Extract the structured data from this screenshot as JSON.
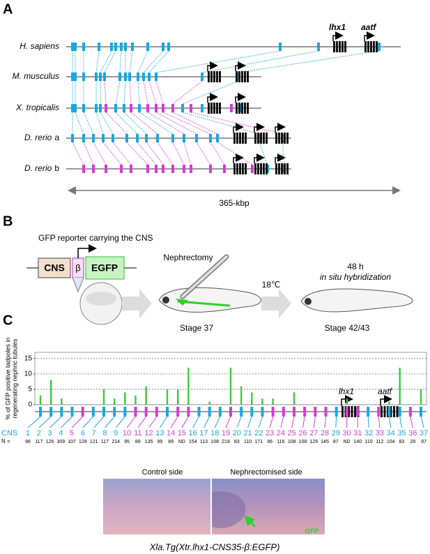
{
  "panel_a": {
    "label": "A",
    "species": [
      {
        "name": "H. sapiens"
      },
      {
        "name": "M. musculus"
      },
      {
        "name": "X. tropicalis"
      },
      {
        "name": "D. rerio",
        "suffix": "a"
      },
      {
        "name": "D. rerio",
        "suffix": "b"
      }
    ],
    "genes": [
      "lhx1",
      "aatf"
    ],
    "scale": "365-kbp"
  },
  "panel_b": {
    "label": "B",
    "construct_caption": "GFP reporter carrying the CNS",
    "cns": "CNS",
    "beta": "β",
    "egfp": "EGFP",
    "step1": "Nephrectomy",
    "stage1": "Stage 37",
    "temperature": "18℃",
    "time": "48 h",
    "method": "in situ hybridization",
    "stage2": "Stage 42/43"
  },
  "chart_data": {
    "type": "bar",
    "panel_label": "C",
    "ylabel": [
      "% of GFP positive tadpoles in",
      "regenerating nephric tubules"
    ],
    "genes": [
      "lhx1",
      "aatf"
    ],
    "row_labels": {
      "cns": "CNS",
      "n": "N ="
    },
    "categories": [
      "1",
      "2",
      "3",
      "4",
      "5",
      "6",
      "7",
      "8",
      "9",
      "10",
      "11",
      "12",
      "13",
      "14",
      "15",
      "16",
      "17",
      "18",
      "19",
      "20",
      "21",
      "22",
      "23",
      "24",
      "25",
      "26",
      "27",
      "28",
      "29",
      "30",
      "31",
      "32",
      "33",
      "34",
      "35",
      "36",
      "37"
    ],
    "values": [
      3,
      8,
      2,
      0,
      0,
      0,
      5,
      2,
      4,
      3,
      6,
      0,
      5,
      5,
      12,
      0,
      1,
      0,
      12,
      6,
      4,
      2,
      2,
      0,
      4,
      0,
      0,
      0,
      0,
      2,
      0,
      0,
      0,
      1,
      12,
      0,
      5
    ],
    "n": [
      96,
      117,
      126,
      309,
      107,
      128,
      121,
      117,
      214,
      95,
      89,
      135,
      99,
      89,
      "ND",
      154,
      113,
      108,
      218,
      83,
      110,
      171,
      96,
      116,
      108,
      108,
      129,
      145,
      87,
      "ND",
      140,
      110,
      112,
      104,
      83,
      29,
      97
    ],
    "category_colors": [
      "#1aa7e0",
      "#1aa7e0",
      "#1aa7e0",
      "#1aa7e0",
      "#d63cd6",
      "#1aa7e0",
      "#1aa7e0",
      "#1aa7e0",
      "#1aa7e0",
      "#d63cd6",
      "#d63cd6",
      "#d63cd6",
      "#1aa7e0",
      "#d63cd6",
      "#d63cd6",
      "#1aa7e0",
      "#1aa7e0",
      "#1aa7e0",
      "#d63cd6",
      "#1aa7e0",
      "#1aa7e0",
      "#1aa7e0",
      "#d63cd6",
      "#d63cd6",
      "#d63cd6",
      "#d63cd6",
      "#d63cd6",
      "#d63cd6",
      "#1aa7e0",
      "#d63cd6",
      "#d63cd6",
      "#1aa7e0",
      "#d63cd6",
      "#1aa7e0",
      "#1aa7e0",
      "#d63cd6",
      "#1aa7e0"
    ],
    "bar_color": "#3ec93e",
    "ylim": [
      0,
      17
    ],
    "yticks": [
      0,
      5,
      10,
      15
    ],
    "grid": true
  },
  "panel_c_image": {
    "control": "Control side",
    "nephrectomised": "Nephrectomised side",
    "gfp": "GFP",
    "caption": "Xla.Tg(Xtr.lhx1-CNS35-β:EGFP)"
  }
}
